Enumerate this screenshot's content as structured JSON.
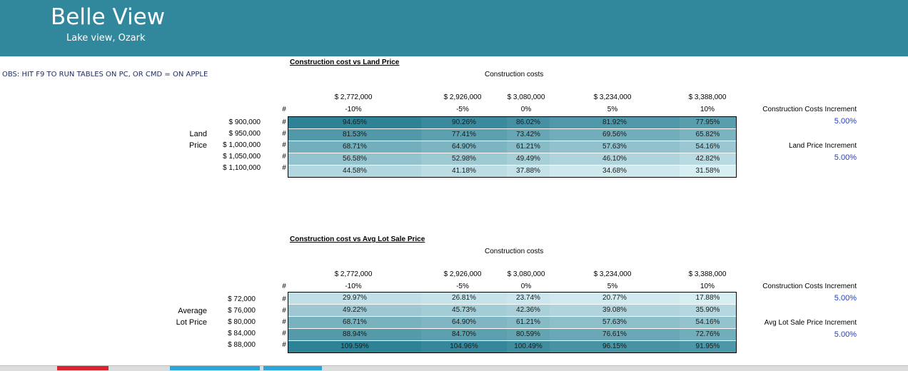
{
  "header": {
    "title": "Belle View",
    "subtitle": "Lake view, Ozark"
  },
  "note": "OBS:  HIT F9 TO RUN TABLES ON PC, OR CMD = ON APPLE",
  "tables": [
    {
      "title": "Construction cost vs Land Price",
      "col_header": "Construction costs",
      "row_label_1": "Land",
      "row_label_2": "Price",
      "columns": [
        "$ 2,772,000",
        "$ 2,926,000",
        "$ 3,080,000",
        "$ 3,234,000",
        "$ 3,388,000"
      ],
      "col_pcts": [
        "-10%",
        "-5%",
        "0%",
        "5%",
        "10%"
      ],
      "rows": [
        "$ 900,000",
        "$ 950,000",
        "$ 1,000,000",
        "$ 1,050,000",
        "$ 1,100,000"
      ],
      "hash": "#",
      "values": [
        [
          "94.65%",
          "90.26%",
          "86.02%",
          "81.92%",
          "77.95%"
        ],
        [
          "81.53%",
          "77.41%",
          "73.42%",
          "69.56%",
          "65.82%"
        ],
        [
          "68.71%",
          "64.90%",
          "61.21%",
          "57.63%",
          "54.16%"
        ],
        [
          "56.58%",
          "52.98%",
          "49.49%",
          "46.10%",
          "42.82%"
        ],
        [
          "44.58%",
          "41.18%",
          "37.88%",
          "34.68%",
          "31.58%"
        ]
      ],
      "inc1_label": "Construction Costs Increment",
      "inc1_value": "5.00%",
      "inc2_label": "Land Price Increment",
      "inc2_value": "5.00%"
    },
    {
      "title": "Construction cost vs Avg Lot Sale Price",
      "col_header": "Construction costs",
      "row_label_1": "Average",
      "row_label_2": "Lot Price",
      "columns": [
        "$ 2,772,000",
        "$ 2,926,000",
        "$ 3,080,000",
        "$ 3,234,000",
        "$ 3,388,000"
      ],
      "col_pcts": [
        "-10%",
        "-5%",
        "0%",
        "5%",
        "10%"
      ],
      "rows": [
        "$ 72,000",
        "$ 76,000",
        "$ 80,000",
        "$ 84,000",
        "$ 88,000"
      ],
      "hash": "#",
      "values": [
        [
          "29.97%",
          "26.81%",
          "23.74%",
          "20.77%",
          "17.88%"
        ],
        [
          "49.22%",
          "45.73%",
          "42.36%",
          "39.08%",
          "35.90%"
        ],
        [
          "68.71%",
          "64.90%",
          "61.21%",
          "57.63%",
          "54.16%"
        ],
        [
          "88.94%",
          "84.70%",
          "80.59%",
          "76.61%",
          "72.76%"
        ],
        [
          "109.59%",
          "104.96%",
          "100.49%",
          "96.15%",
          "91.95%"
        ]
      ],
      "inc1_label": "Construction Costs Increment",
      "inc1_value": "5.00%",
      "inc2_label": "Avg Lot Sale Price Increment",
      "inc2_value": "5.00%"
    }
  ],
  "colors": {
    "header_bg": "#31889c",
    "heat_low": "#d6edf2",
    "heat_high": "#2e8296",
    "tab_red": "#d9262c",
    "tab_blue": "#29a7d6"
  }
}
